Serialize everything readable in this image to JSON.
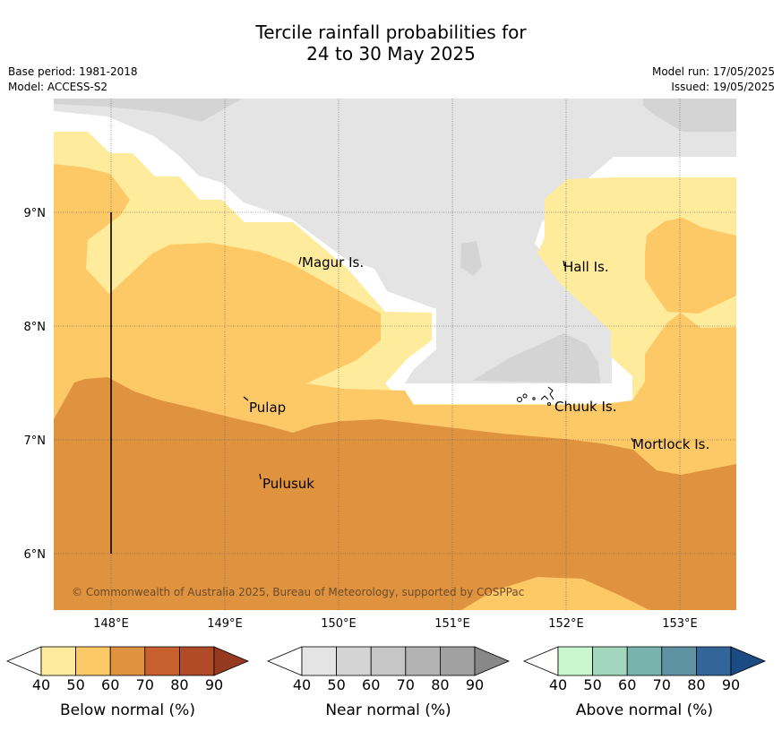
{
  "title_line1": "Tercile rainfall probabilities for",
  "title_line2": "24 to 30 May 2025",
  "meta_left": [
    "Base period: 1981-2018",
    "Model: ACCESS-S2"
  ],
  "meta_right": [
    "Model run: 17/05/2025",
    "Issued: 19/05/2025"
  ],
  "map": {
    "lat_labels": [
      "9°N",
      "8°N",
      "7°N",
      "6°N"
    ],
    "lon_labels": [
      "148°E",
      "149°E",
      "150°E",
      "151°E",
      "152°E",
      "153°E"
    ],
    "places": [
      "Magur Is.",
      "Hall Is.",
      "Pulap",
      "Chuuk Is.",
      "Mortlock Is.",
      "Pulusuk"
    ],
    "copyright": "© Commonwealth of Australia 2025, Bureau of Meteorology, supported by COSPPac"
  },
  "colorbars": [
    {
      "label": "Below normal (%)",
      "ticks": [
        "40",
        "50",
        "60",
        "70",
        "80",
        "90"
      ],
      "colors": [
        "#ffeb9c",
        "#fdc966",
        "#e0933f",
        "#c9612f",
        "#b14a27",
        "#953a20"
      ]
    },
    {
      "label": "Near normal (%)",
      "ticks": [
        "40",
        "50",
        "60",
        "70",
        "80",
        "90"
      ],
      "colors": [
        "#e4e4e4",
        "#d4d4d4",
        "#c6c6c6",
        "#b3b3b3",
        "#a1a1a1",
        "#888888"
      ]
    },
    {
      "label": "Above normal (%)",
      "ticks": [
        "40",
        "50",
        "60",
        "70",
        "80",
        "90"
      ],
      "colors": [
        "#c9f8cf",
        "#a2d7bd",
        "#79b3ae",
        "#5f93a4",
        "#336698",
        "#1b4b82"
      ]
    }
  ],
  "colors": {
    "below_40_50": "#ffeb9c",
    "below_50_60": "#fdc966",
    "below_60_70": "#e0933f",
    "near_40_50": "#e4e4e4",
    "near_50_60": "#d4d4d4"
  }
}
